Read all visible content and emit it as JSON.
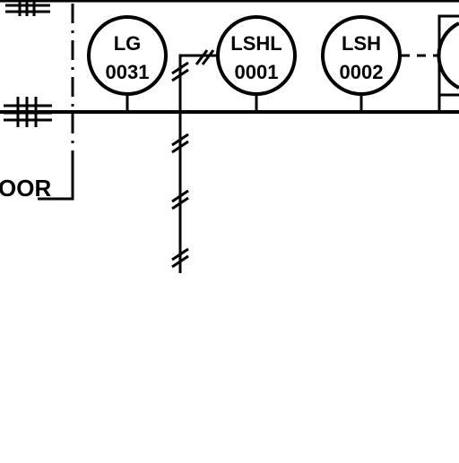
{
  "colors": {
    "background": "#ffffff",
    "line": "#000000"
  },
  "text": {
    "partial_label": "OOR"
  },
  "instruments": [
    {
      "tag": "LG",
      "number": "0031"
    },
    {
      "tag": "LSHL",
      "number": "0001"
    },
    {
      "tag": "LSH",
      "number": "0002"
    }
  ]
}
